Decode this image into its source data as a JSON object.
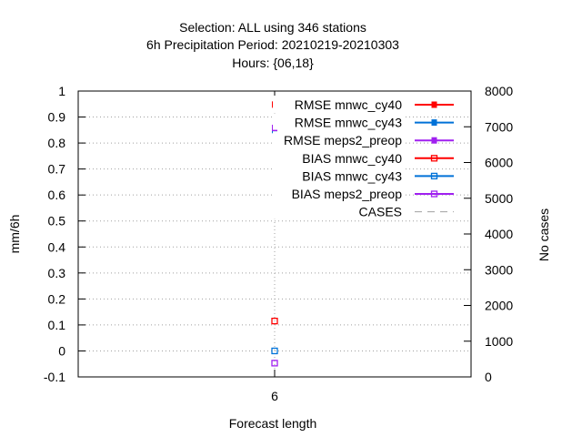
{
  "chart_data": {
    "type": "scatter",
    "title_lines": [
      "Selection: ALL using   346 stations",
      "6h Precipitation   Period: 20210219-20210303",
      "Hours: {06,18}"
    ],
    "xlabel": "Forecast length",
    "ylabel": "mm/6h",
    "y2label": "No cases",
    "x_ticks": [
      "6"
    ],
    "x": [
      6
    ],
    "ylim": [
      -0.1,
      1
    ],
    "y_ticks": [
      "-0.1",
      "0",
      "0.1",
      "0.2",
      "0.3",
      "0.4",
      "0.5",
      "0.6",
      "0.7",
      "0.8",
      "0.9",
      "1"
    ],
    "y2lim": [
      0,
      8000
    ],
    "y2_ticks": [
      "0",
      "1000",
      "2000",
      "3000",
      "4000",
      "5000",
      "6000",
      "7000",
      "8000"
    ],
    "grid": true,
    "legend_position": "top-right",
    "series": [
      {
        "name": "RMSE mnwc_cy40",
        "color": "#ff0000",
        "marker": "filled",
        "values": [
          0.948
        ]
      },
      {
        "name": "RMSE mnwc_cy43",
        "color": "#0072d8",
        "marker": "filled",
        "values": [
          0.85
        ]
      },
      {
        "name": "RMSE meps2_preop",
        "color": "#a020f0",
        "marker": "filled",
        "values": [
          0.858
        ]
      },
      {
        "name": "BIAS mnwc_cy40",
        "color": "#ff0000",
        "marker": "open",
        "values": [
          0.115
        ]
      },
      {
        "name": "BIAS mnwc_cy43",
        "color": "#0072d8",
        "marker": "open",
        "values": [
          0.0
        ]
      },
      {
        "name": "BIAS meps2_preop",
        "color": "#a020f0",
        "marker": "open",
        "values": [
          -0.047
        ]
      },
      {
        "name": "CASES",
        "color": "#a0a0a0",
        "marker": "dashed",
        "axis": "y2",
        "values": []
      }
    ]
  }
}
